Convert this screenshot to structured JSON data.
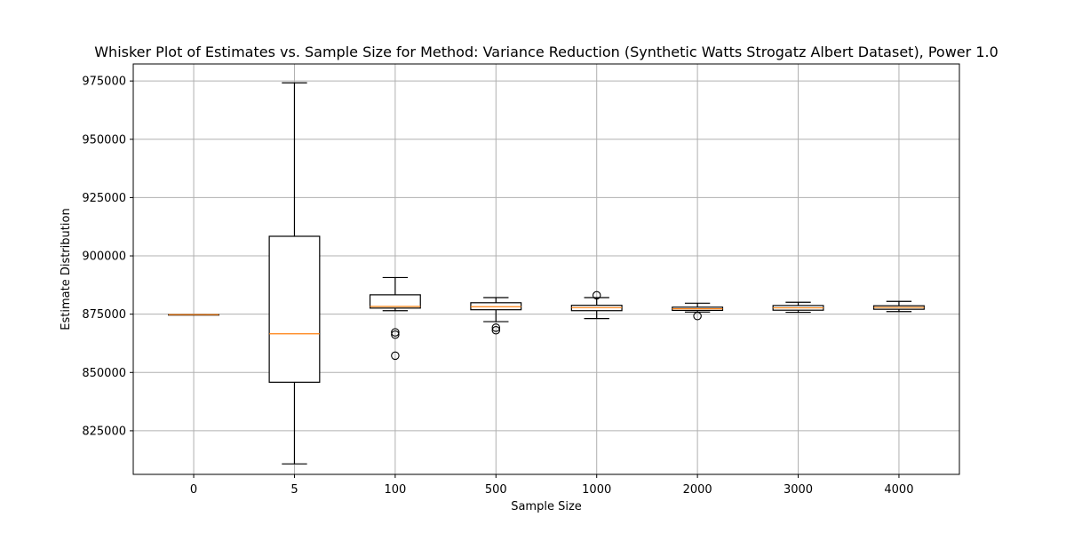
{
  "chart_data": {
    "type": "box",
    "title": "Whisker Plot of Estimates vs. Sample Size for Method: Variance Reduction (Synthetic Watts Strogatz Albert Dataset), Power 1.0",
    "xlabel": "Sample Size",
    "ylabel": "Estimate Distribution",
    "categories": [
      "0",
      "5",
      "100",
      "500",
      "1000",
      "2000",
      "3000",
      "4000"
    ],
    "ylim": [
      806300,
      982300
    ],
    "yticks": [
      825000,
      850000,
      875000,
      900000,
      925000,
      950000,
      975000
    ],
    "ytick_labels": [
      "825000",
      "850000",
      "875000",
      "900000",
      "925000",
      "950000",
      "975000"
    ],
    "grid": true,
    "boxes": [
      {
        "category": "0",
        "whislo": 874800,
        "q1": 874800,
        "med": 874800,
        "q3": 874800,
        "whishi": 874800,
        "fliers": []
      },
      {
        "category": "5",
        "whislo": 810800,
        "q1": 845800,
        "med": 866600,
        "q3": 908400,
        "whishi": 974200,
        "fliers": []
      },
      {
        "category": "100",
        "whislo": 876500,
        "q1": 877600,
        "med": 878300,
        "q3": 883300,
        "whishi": 890700,
        "fliers": [
          867200,
          866200,
          857200
        ]
      },
      {
        "category": "500",
        "whislo": 871800,
        "q1": 876900,
        "med": 878200,
        "q3": 879900,
        "whishi": 882100,
        "fliers": [
          869200,
          868100
        ]
      },
      {
        "category": "1000",
        "whislo": 873100,
        "q1": 876500,
        "med": 877800,
        "q3": 878800,
        "whishi": 882100,
        "fliers": [
          883100
        ]
      },
      {
        "category": "2000",
        "whislo": 875900,
        "q1": 876600,
        "med": 877300,
        "q3": 878000,
        "whishi": 879700,
        "fliers": [
          874200
        ]
      },
      {
        "category": "3000",
        "whislo": 875800,
        "q1": 876700,
        "med": 877700,
        "q3": 878700,
        "whishi": 880100,
        "fliers": []
      },
      {
        "category": "4000",
        "whislo": 876100,
        "q1": 877100,
        "med": 877900,
        "q3": 878600,
        "whishi": 880500,
        "fliers": []
      }
    ],
    "colors": {
      "box": "#000000",
      "median": "#ff7f0e",
      "grid": "#b0b0b0",
      "flier": "#000000"
    }
  }
}
